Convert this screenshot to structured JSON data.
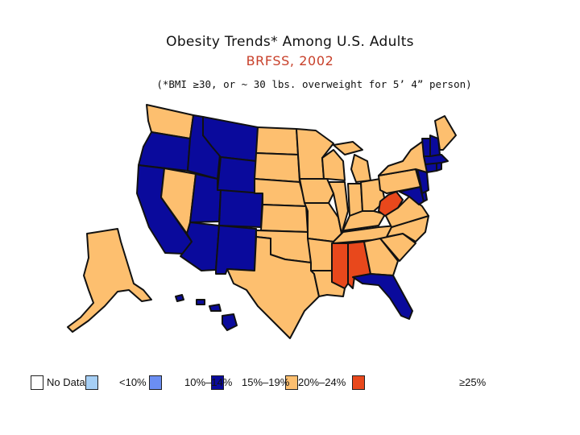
{
  "title": "Obesity Trends* Among U.S. Adults",
  "subtitle": "BRFSS, 2002",
  "footnote": "(*BMI ≥30, or ~ 30 lbs. overweight for 5’ 4” person)",
  "colors": {
    "no_data": "#ffffff",
    "lt10": "#a6cff5",
    "10_14": "#6b8ef2",
    "15_19_blue": "#0a0a9c",
    "15_19": "#fdbf6f",
    "20_24": "#e8481c",
    "outline": "#111111"
  },
  "legend": [
    {
      "label": "No Data",
      "color_key": "no_data"
    },
    {
      "label": "<10%",
      "color_key": "lt10"
    },
    {
      "label": "10%–14%",
      "color_key": "10_14"
    },
    {
      "label": "15%–19%",
      "color_key": "15_19_blue"
    },
    {
      "label": "20%–24%",
      "color_key": "15_19"
    },
    {
      "label": "≥25%",
      "color_key": "20_24"
    }
  ],
  "legend_visible_labels": [
    "No Data",
    "<10%",
    "10%–14%",
    "15%–19%",
    "20%–24%",
    "≥25%"
  ],
  "states": {
    "blue": [
      "OR",
      "ID",
      "MT",
      "WY",
      "UT",
      "CO",
      "AZ",
      "NM",
      "CA",
      "FL",
      "VT",
      "NH",
      "MA",
      "CT",
      "RI",
      "NJ",
      "MD",
      "DE",
      "HI"
    ],
    "red": [
      "MS",
      "AL",
      "WV"
    ]
  }
}
